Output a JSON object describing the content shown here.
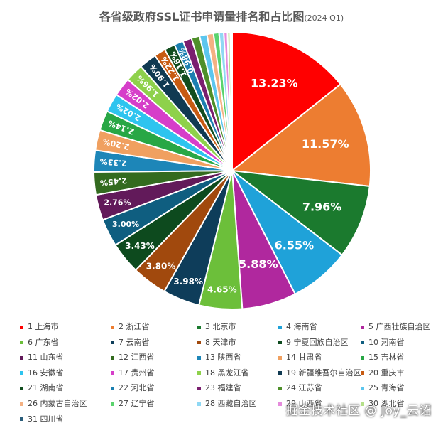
{
  "chart_data": {
    "type": "pie",
    "title": "各省级政府SSL证书申请量排名和占比图",
    "subtitle": "(2024 Q1)",
    "legend_position": "bottom",
    "slices": [
      {
        "label": "1 上海市",
        "value": 13.23,
        "display": "13.23%",
        "color": "#ff0000"
      },
      {
        "label": "2 浙江省",
        "value": 11.57,
        "display": "11.57%",
        "color": "#ed7d31"
      },
      {
        "label": "3 北京市",
        "value": 7.96,
        "display": "7.96%",
        "color": "#1b7a2e"
      },
      {
        "label": "4 海南省",
        "value": 6.55,
        "display": "6.55%",
        "color": "#1fa2d9"
      },
      {
        "label": "5 广西壮族自治区",
        "value": 5.88,
        "display": "5.88%",
        "color": "#b0289e"
      },
      {
        "label": "6 广东省",
        "value": 4.65,
        "display": "4.65%",
        "color": "#6cbf3a"
      },
      {
        "label": "7 云南省",
        "value": 3.98,
        "display": "3.98%",
        "color": "#0e3d5a"
      },
      {
        "label": "8 天津市",
        "value": 3.8,
        "display": "3.80%",
        "color": "#a1490d"
      },
      {
        "label": "9 宁夏回族自治区",
        "value": 3.43,
        "display": "3.43%",
        "color": "#0d4a1e"
      },
      {
        "label": "10 河南省",
        "value": 3.0,
        "display": "3.00%",
        "color": "#0f5e80"
      },
      {
        "label": "11 山东省",
        "value": 2.76,
        "display": "2.76%",
        "color": "#621a5a"
      },
      {
        "label": "12 江西省",
        "value": 2.45,
        "display": "2.45%",
        "color": "#336b1f"
      },
      {
        "label": "13 陕西省",
        "value": 2.33,
        "display": "2.33%",
        "color": "#1d86b8"
      },
      {
        "label": "14 甘肃省",
        "value": 2.2,
        "display": "2.20%",
        "color": "#f0a060"
      },
      {
        "label": "15 吉林省",
        "value": 2.14,
        "display": "2.14%",
        "color": "#28a745"
      },
      {
        "label": "16 安徽省",
        "value": 2.02,
        "display": "2.02%",
        "color": "#2ec4ef"
      },
      {
        "label": "17 贵州省",
        "value": 2.02,
        "display": "2.02%",
        "color": "#d63ec9"
      },
      {
        "label": "18 黑龙江省",
        "value": 1.96,
        "display": "1.96%",
        "color": "#8ed14b"
      },
      {
        "label": "19 新疆维吾尔自治区",
        "value": 1.9,
        "display": "1.90%",
        "color": "#103a52"
      },
      {
        "label": "20 重庆市",
        "value": 1.22,
        "display": "1.22%",
        "color": "#c75b12"
      },
      {
        "label": "21 湖南省",
        "value": 1.16,
        "display": "1.16%",
        "color": "#124d1f"
      },
      {
        "label": "22 河北省",
        "value": 0.98,
        "display": "0.98%",
        "color": "#1a7fb0"
      },
      {
        "label": "23 福建省",
        "value": 0.95,
        "display": "",
        "color": "#7a1f6f"
      },
      {
        "label": "24 江苏省",
        "value": 0.9,
        "display": "",
        "color": "#4e8f2a"
      },
      {
        "label": "25 青海省",
        "value": 0.8,
        "display": "",
        "color": "#5cc6ee"
      },
      {
        "label": "26 内蒙古自治区",
        "value": 0.7,
        "display": "",
        "color": "#f4b183"
      },
      {
        "label": "27 辽宁省",
        "value": 0.6,
        "display": "",
        "color": "#5ad36d"
      },
      {
        "label": "28 西藏自治区",
        "value": 0.5,
        "display": "",
        "color": "#8fd8f4"
      },
      {
        "label": "29 山西省",
        "value": 0.4,
        "display": "",
        "color": "#e58bdc"
      },
      {
        "label": "30 湖北省",
        "value": 0.3,
        "display": "",
        "color": "#b5e08a"
      },
      {
        "label": "31 四川省",
        "value": 0.2,
        "display": "",
        "color": "#2a5d7a"
      }
    ]
  },
  "watermark": "掘金技术社区 @ Joy_云诏"
}
